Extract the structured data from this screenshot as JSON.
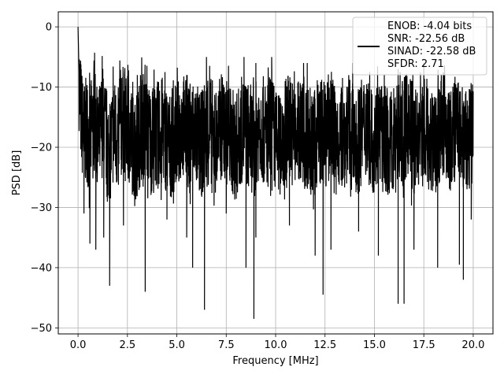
{
  "chart_data": {
    "type": "line",
    "xlabel": "Frequency [MHz]",
    "ylabel": "PSD [dB]",
    "xlim": [
      -1.0,
      21.0
    ],
    "ylim": [
      -51.0,
      2.5
    ],
    "xticks": [
      0.0,
      2.5,
      5.0,
      7.5,
      10.0,
      12.5,
      15.0,
      17.5,
      20.0
    ],
    "xtick_labels": [
      "0.0",
      "2.5",
      "5.0",
      "7.5",
      "10.0",
      "12.5",
      "15.0",
      "17.5",
      "20.0"
    ],
    "yticks": [
      0,
      -10,
      -20,
      -30,
      -40,
      -50
    ],
    "ytick_labels": [
      "0",
      "−10",
      "−20",
      "−30",
      "−40",
      "−50"
    ],
    "grid": true,
    "legend_position": "top-right",
    "series": [
      {
        "color": "#000000",
        "noise_band_db": [
          -30,
          -10
        ],
        "x": [
          0.0,
          0.02,
          0.05,
          0.1,
          0.2,
          0.3,
          0.45,
          0.6,
          0.8,
          1.0,
          1.2,
          1.4,
          1.6,
          1.8,
          2.0,
          2.3,
          2.6,
          2.9,
          3.2,
          3.4,
          3.7,
          4.0,
          4.3,
          4.6,
          5.0,
          5.3,
          5.6,
          5.9,
          6.2,
          6.4,
          6.7,
          7.0,
          7.3,
          7.6,
          8.0,
          8.3,
          8.6,
          8.9,
          9.2,
          9.5,
          9.8,
          10.1,
          10.4,
          10.7,
          11.0,
          11.3,
          11.6,
          11.9,
          12.2,
          12.5,
          12.8,
          13.1,
          13.4,
          13.7,
          14.0,
          14.3,
          14.6,
          14.9,
          15.2,
          15.5,
          15.8,
          16.1,
          16.4,
          16.7,
          17.0,
          17.3,
          17.6,
          17.9,
          18.2,
          18.5,
          18.8,
          19.1,
          19.4,
          19.7,
          20.0
        ],
        "y": [
          0.0,
          -3.0,
          -8.0,
          -12.0,
          -16.0,
          -18.0,
          -17.0,
          -19.0,
          -15.0,
          -20.0,
          -16.0,
          -18.0,
          -21.0,
          -17.0,
          -19.0,
          -15.0,
          -18.0,
          -20.0,
          -17.0,
          -16.0,
          -19.0,
          -18.0,
          -17.0,
          -20.0,
          -18.0,
          -16.0,
          -19.0,
          -17.0,
          -20.0,
          -18.0,
          -17.0,
          -19.0,
          -16.0,
          -18.0,
          -20.0,
          -17.0,
          -18.0,
          -19.0,
          -16.0,
          -18.0,
          -17.0,
          -20.0,
          -18.0,
          -16.0,
          -19.0,
          -17.0,
          -18.0,
          -20.0,
          -17.0,
          -18.0,
          -16.0,
          -19.0,
          -18.0,
          -17.0,
          -20.0,
          -18.0,
          -16.0,
          -19.0,
          -17.0,
          -18.0,
          -20.0,
          -17.0,
          -18.0,
          -16.0,
          -19.0,
          -18.0,
          -17.0,
          -20.0,
          -18.0,
          -16.0,
          -19.0,
          -17.0,
          -18.0,
          -20.0,
          -17.0
        ],
        "peaks": [
          {
            "x": 0.0,
            "y": 0.0
          },
          {
            "x": 0.1,
            "y": -7.0
          },
          {
            "x": 0.6,
            "y": -9.5
          },
          {
            "x": 2.2,
            "y": -8.5
          },
          {
            "x": 3.0,
            "y": -8.0
          },
          {
            "x": 4.4,
            "y": -7.5
          },
          {
            "x": 5.5,
            "y": -8.0
          },
          {
            "x": 6.5,
            "y": -5.0
          },
          {
            "x": 8.4,
            "y": -5.0
          },
          {
            "x": 9.0,
            "y": -6.0
          },
          {
            "x": 9.8,
            "y": -5.0
          },
          {
            "x": 11.6,
            "y": -6.0
          },
          {
            "x": 13.9,
            "y": -6.0
          },
          {
            "x": 15.5,
            "y": -8.0
          },
          {
            "x": 16.2,
            "y": -7.0
          },
          {
            "x": 17.5,
            "y": -6.0
          },
          {
            "x": 18.5,
            "y": -8.0
          },
          {
            "x": 19.9,
            "y": -11.0
          }
        ],
        "dips": [
          {
            "x": 0.3,
            "y": -31.0
          },
          {
            "x": 0.6,
            "y": -36.0
          },
          {
            "x": 0.9,
            "y": -37.0
          },
          {
            "x": 1.3,
            "y": -35.0
          },
          {
            "x": 1.6,
            "y": -43.0
          },
          {
            "x": 2.3,
            "y": -33.0
          },
          {
            "x": 3.4,
            "y": -44.0
          },
          {
            "x": 4.5,
            "y": -32.0
          },
          {
            "x": 5.5,
            "y": -35.0
          },
          {
            "x": 5.8,
            "y": -40.0
          },
          {
            "x": 6.4,
            "y": -47.0
          },
          {
            "x": 7.5,
            "y": -31.0
          },
          {
            "x": 8.5,
            "y": -40.0
          },
          {
            "x": 8.9,
            "y": -48.5
          },
          {
            "x": 9.0,
            "y": -35.0
          },
          {
            "x": 10.7,
            "y": -33.0
          },
          {
            "x": 12.0,
            "y": -38.0
          },
          {
            "x": 12.4,
            "y": -44.5
          },
          {
            "x": 12.8,
            "y": -37.0
          },
          {
            "x": 14.2,
            "y": -34.0
          },
          {
            "x": 15.2,
            "y": -38.0
          },
          {
            "x": 16.2,
            "y": -46.0
          },
          {
            "x": 16.5,
            "y": -46.0
          },
          {
            "x": 17.0,
            "y": -37.0
          },
          {
            "x": 18.2,
            "y": -40.0
          },
          {
            "x": 19.3,
            "y": -39.5
          },
          {
            "x": 19.5,
            "y": -42.0
          },
          {
            "x": 19.9,
            "y": -32.0
          }
        ]
      }
    ],
    "legend": [
      "ENOB: -4.04 bits",
      "SNR: -22.56 dB",
      "SINAD: -22.58 dB",
      "SFDR: 2.71"
    ]
  }
}
